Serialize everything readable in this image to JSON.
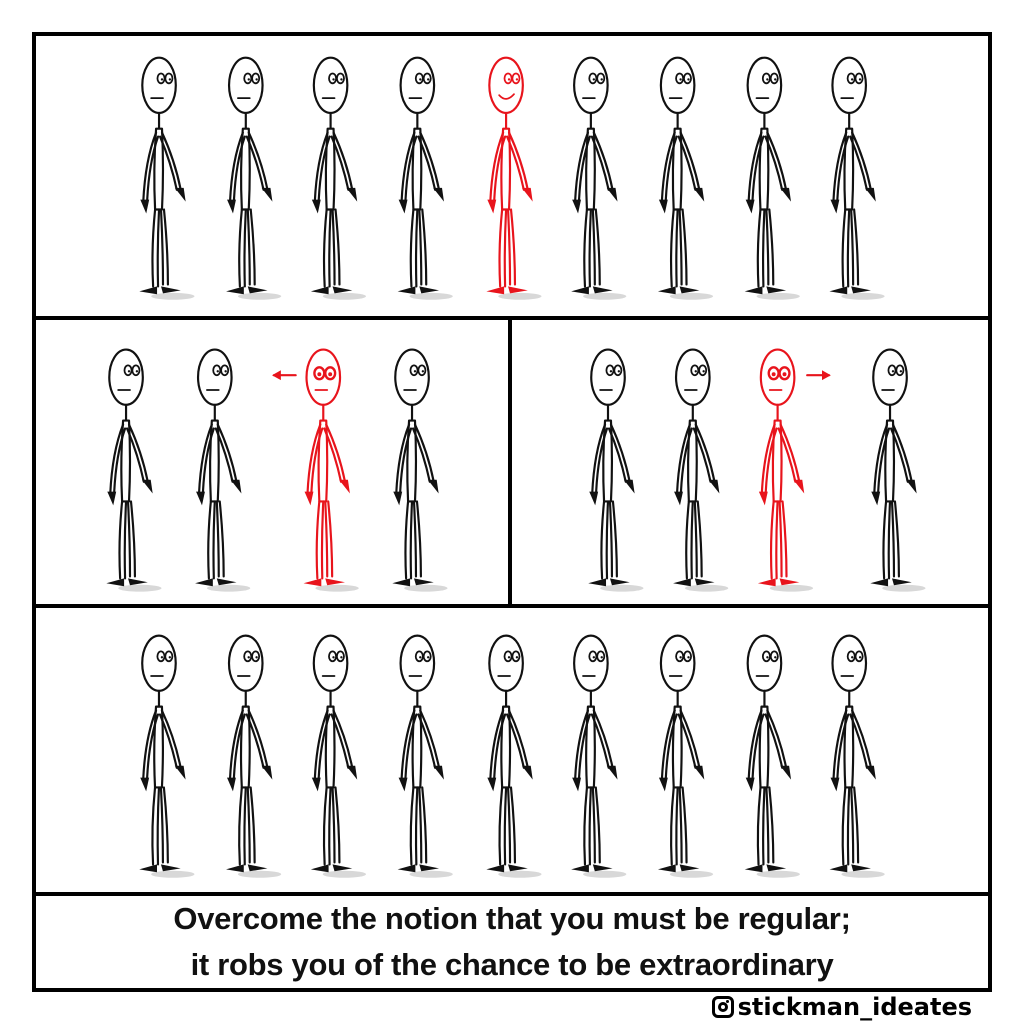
{
  "caption": {
    "line1": "Overcome the notion that you must be regular;",
    "line2": "it robs you of the chance to be extraordinary"
  },
  "credit": {
    "icon": "instagram-icon",
    "handle": "stickman_ideates"
  },
  "colors": {
    "ink": "#111111",
    "highlight": "#e8141c"
  },
  "panels": {
    "top": {
      "figure_count": 9,
      "highlight_index": 4,
      "highlight_expression": "smile"
    },
    "middle_left": {
      "figure_count": 4,
      "highlight_index": 2,
      "highlight_expression": "wide-eyed",
      "arrow": "left"
    },
    "middle_right": {
      "figure_count": 4,
      "highlight_index": 2,
      "highlight_expression": "wide-eyed",
      "arrow": "right"
    },
    "bottom": {
      "figure_count": 9,
      "highlight_index": -1
    }
  }
}
